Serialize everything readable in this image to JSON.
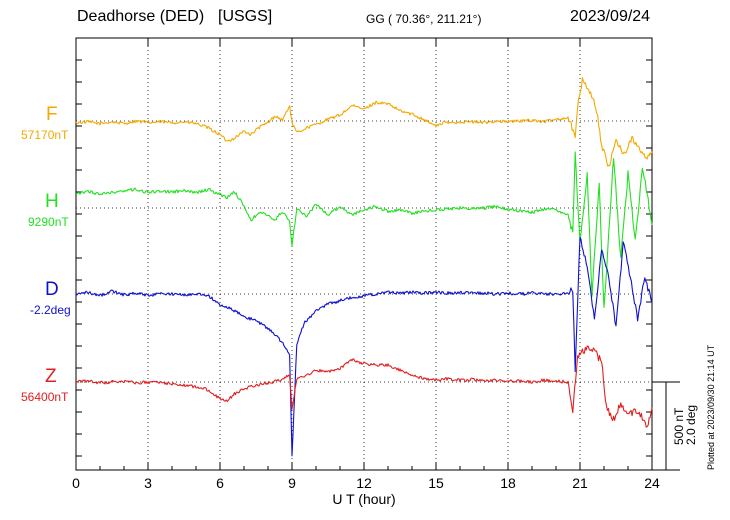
{
  "header": {
    "station": "Deadhorse (DED)",
    "network": "[USGS]",
    "coords": "GG ( 70.36°, 211.21°)",
    "date": "2023/09/24"
  },
  "footer": {
    "plotted": "Plotted at 2023/09/30 21:14 UT",
    "scale_nt": "500 nT",
    "scale_deg": "2.0 deg"
  },
  "chart_data": {
    "type": "line",
    "xlabel": "U T (hour)",
    "xlim": [
      0,
      24
    ],
    "xticks": [
      0,
      3,
      6,
      9,
      12,
      15,
      18,
      21,
      24
    ],
    "grid": true,
    "scale_bar": "500 nT / 2.0 deg",
    "series": [
      {
        "name": "F",
        "baseline": "57170nT",
        "color": "#f2a900",
        "points": [
          [
            0,
            -10
          ],
          [
            0.5,
            -5
          ],
          [
            1,
            -15
          ],
          [
            1.5,
            -5
          ],
          [
            2,
            -15
          ],
          [
            2.5,
            0
          ],
          [
            3,
            -10
          ],
          [
            3.5,
            -5
          ],
          [
            4,
            -10
          ],
          [
            4.5,
            -5
          ],
          [
            5,
            -15
          ],
          [
            5.5,
            -40
          ],
          [
            6,
            -80
          ],
          [
            6.3,
            -120
          ],
          [
            6.6,
            -100
          ],
          [
            7,
            -60
          ],
          [
            7.3,
            -80
          ],
          [
            7.6,
            -40
          ],
          [
            8,
            -10
          ],
          [
            8.3,
            30
          ],
          [
            8.6,
            5
          ],
          [
            8.9,
            90
          ],
          [
            9,
            -10
          ],
          [
            9.2,
            -70
          ],
          [
            9.6,
            -40
          ],
          [
            10,
            -20
          ],
          [
            10.5,
            10
          ],
          [
            11,
            35
          ],
          [
            11.5,
            90
          ],
          [
            12,
            70
          ],
          [
            12.5,
            110
          ],
          [
            13,
            100
          ],
          [
            13.5,
            60
          ],
          [
            14,
            40
          ],
          [
            14.5,
            10
          ],
          [
            15,
            -30
          ],
          [
            15.3,
            -10
          ],
          [
            15.6,
            -10
          ],
          [
            16,
            -5
          ],
          [
            16.5,
            -5
          ],
          [
            17,
            -10
          ],
          [
            17.5,
            0
          ],
          [
            18,
            -5
          ],
          [
            18.5,
            0
          ],
          [
            19,
            5
          ],
          [
            19.5,
            -5
          ],
          [
            20,
            10
          ],
          [
            20.5,
            20
          ],
          [
            20.8,
            -80
          ],
          [
            20.9,
            80
          ],
          [
            21.1,
            240
          ],
          [
            21.4,
            180
          ],
          [
            21.7,
            60
          ],
          [
            21.9,
            -140
          ],
          [
            22.2,
            -280
          ],
          [
            22.5,
            -100
          ],
          [
            22.8,
            -200
          ],
          [
            23.2,
            -100
          ],
          [
            23.5,
            -180
          ],
          [
            23.8,
            -220
          ],
          [
            24,
            -180
          ]
        ]
      },
      {
        "name": "H",
        "baseline": "9290nT",
        "color": "#22e022",
        "points": [
          [
            0,
            80
          ],
          [
            0.5,
            100
          ],
          [
            1,
            80
          ],
          [
            1.5,
            90
          ],
          [
            2,
            100
          ],
          [
            2.5,
            110
          ],
          [
            3,
            90
          ],
          [
            3.5,
            100
          ],
          [
            4,
            95
          ],
          [
            4.5,
            100
          ],
          [
            5,
            90
          ],
          [
            5.5,
            110
          ],
          [
            6,
            80
          ],
          [
            6.3,
            60
          ],
          [
            6.6,
            100
          ],
          [
            7,
            10
          ],
          [
            7.3,
            -70
          ],
          [
            7.6,
            -30
          ],
          [
            8,
            -40
          ],
          [
            8.3,
            -70
          ],
          [
            8.6,
            -20
          ],
          [
            8.9,
            -80
          ],
          [
            9,
            -220
          ],
          [
            9.2,
            0
          ],
          [
            9.6,
            -50
          ],
          [
            10,
            20
          ],
          [
            10.5,
            -40
          ],
          [
            11,
            10
          ],
          [
            11.5,
            -40
          ],
          [
            12,
            -10
          ],
          [
            12.5,
            10
          ],
          [
            13,
            -20
          ],
          [
            13.5,
            -10
          ],
          [
            14,
            -30
          ],
          [
            14.5,
            -20
          ],
          [
            15,
            -10
          ],
          [
            15.5,
            -5
          ],
          [
            16,
            0
          ],
          [
            16.5,
            -5
          ],
          [
            17,
            0
          ],
          [
            17.5,
            10
          ],
          [
            18,
            -10
          ],
          [
            18.5,
            -15
          ],
          [
            19,
            -25
          ],
          [
            19.5,
            -10
          ],
          [
            20,
            -10
          ],
          [
            20.5,
            -40
          ],
          [
            20.7,
            -150
          ],
          [
            20.8,
            330
          ],
          [
            21,
            -220
          ],
          [
            21.3,
            200
          ],
          [
            21.5,
            -500
          ],
          [
            21.8,
            150
          ],
          [
            22,
            -600
          ],
          [
            22.4,
            300
          ],
          [
            22.7,
            -300
          ],
          [
            23,
            200
          ],
          [
            23.3,
            -200
          ],
          [
            23.6,
            250
          ],
          [
            24,
            -100
          ]
        ]
      },
      {
        "name": "D",
        "baseline": "-2.2deg",
        "color": "#1010d0",
        "points": [
          [
            0,
            0
          ],
          [
            0.5,
            10
          ],
          [
            1,
            -10
          ],
          [
            1.5,
            15
          ],
          [
            2,
            -5
          ],
          [
            2.5,
            5
          ],
          [
            3,
            -10
          ],
          [
            3.5,
            5
          ],
          [
            4,
            0
          ],
          [
            4.5,
            -5
          ],
          [
            5,
            5
          ],
          [
            5.5,
            -10
          ],
          [
            6,
            -60
          ],
          [
            6.5,
            -90
          ],
          [
            7,
            -130
          ],
          [
            7.5,
            -160
          ],
          [
            8,
            -200
          ],
          [
            8.5,
            -270
          ],
          [
            8.9,
            -350
          ],
          [
            9,
            -950
          ],
          [
            9.2,
            -300
          ],
          [
            9.5,
            -170
          ],
          [
            10,
            -100
          ],
          [
            10.5,
            -60
          ],
          [
            11,
            -40
          ],
          [
            11.5,
            -20
          ],
          [
            12,
            -10
          ],
          [
            12.5,
            0
          ],
          [
            13,
            10
          ],
          [
            13.5,
            5
          ],
          [
            14,
            10
          ],
          [
            14.5,
            5
          ],
          [
            15,
            10
          ],
          [
            15.5,
            5
          ],
          [
            16,
            10
          ],
          [
            16.5,
            5
          ],
          [
            17,
            5
          ],
          [
            17.5,
            0
          ],
          [
            18,
            5
          ],
          [
            18.5,
            0
          ],
          [
            19,
            5
          ],
          [
            19.5,
            0
          ],
          [
            20,
            0
          ],
          [
            20.5,
            0
          ],
          [
            20.7,
            30
          ],
          [
            20.8,
            -450
          ],
          [
            21,
            350
          ],
          [
            21.3,
            150
          ],
          [
            21.6,
            -150
          ],
          [
            21.9,
            250
          ],
          [
            22.2,
            100
          ],
          [
            22.5,
            -200
          ],
          [
            22.8,
            300
          ],
          [
            23.1,
            100
          ],
          [
            23.4,
            -150
          ],
          [
            23.7,
            100
          ],
          [
            24,
            -50
          ]
        ]
      },
      {
        "name": "Z",
        "baseline": "56400nT",
        "color": "#e02020",
        "points": [
          [
            0,
            0
          ],
          [
            0.5,
            5
          ],
          [
            1,
            -5
          ],
          [
            1.5,
            0
          ],
          [
            2,
            5
          ],
          [
            2.5,
            -5
          ],
          [
            3,
            0
          ],
          [
            3.5,
            -5
          ],
          [
            4,
            -10
          ],
          [
            4.5,
            -20
          ],
          [
            5,
            -30
          ],
          [
            5.5,
            -45
          ],
          [
            6,
            -100
          ],
          [
            6.3,
            -110
          ],
          [
            6.6,
            -70
          ],
          [
            7,
            -40
          ],
          [
            7.5,
            -20
          ],
          [
            8,
            -5
          ],
          [
            8.5,
            10
          ],
          [
            8.9,
            40
          ],
          [
            9,
            -160
          ],
          [
            9.2,
            20
          ],
          [
            9.6,
            40
          ],
          [
            10,
            70
          ],
          [
            10.5,
            60
          ],
          [
            11,
            80
          ],
          [
            11.5,
            130
          ],
          [
            12,
            110
          ],
          [
            12.5,
            100
          ],
          [
            13,
            100
          ],
          [
            13.5,
            70
          ],
          [
            14,
            40
          ],
          [
            14.5,
            20
          ],
          [
            15,
            10
          ],
          [
            15.5,
            20
          ],
          [
            16,
            10
          ],
          [
            16.5,
            15
          ],
          [
            17,
            5
          ],
          [
            17.5,
            10
          ],
          [
            18,
            5
          ],
          [
            18.5,
            5
          ],
          [
            19,
            0
          ],
          [
            19.5,
            10
          ],
          [
            20,
            5
          ],
          [
            20.5,
            0
          ],
          [
            20.7,
            -170
          ],
          [
            20.9,
            150
          ],
          [
            21.3,
            200
          ],
          [
            21.6,
            180
          ],
          [
            21.9,
            120
          ],
          [
            22.1,
            -150
          ],
          [
            22.4,
            -220
          ],
          [
            22.7,
            -130
          ],
          [
            23,
            -190
          ],
          [
            23.3,
            -170
          ],
          [
            23.6,
            -210
          ],
          [
            23.8,
            -270
          ],
          [
            24,
            -150
          ]
        ]
      }
    ]
  }
}
